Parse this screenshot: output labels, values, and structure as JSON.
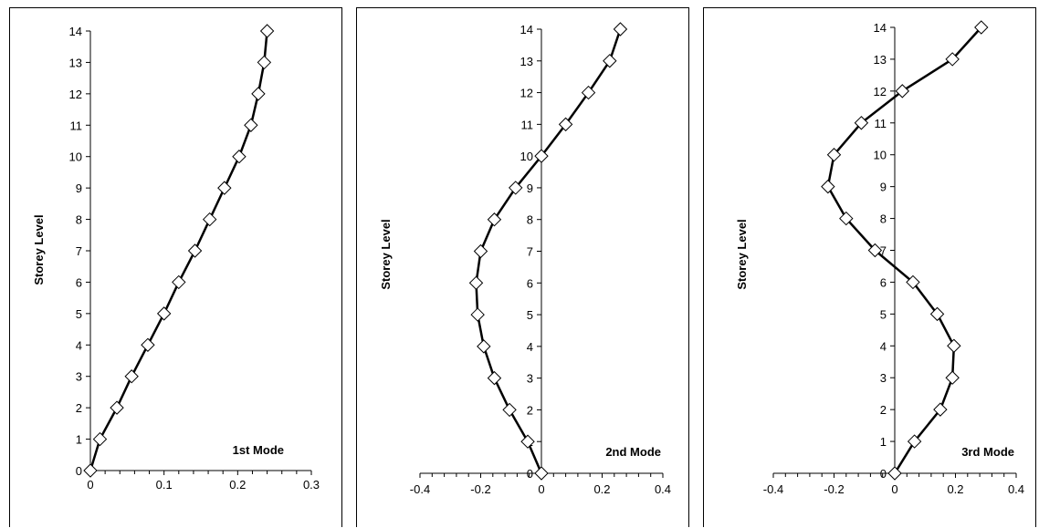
{
  "chart_data": [
    {
      "type": "line",
      "ylabel": "Storey Level",
      "annotation": "1st Mode",
      "xlim": [
        0,
        0.3
      ],
      "ylim": [
        0,
        14
      ],
      "x_ticks": [
        "0",
        "0.1",
        "0.2",
        "0.3"
      ],
      "y_ticks": [
        "0",
        "1",
        "2",
        "3",
        "4",
        "5",
        "6",
        "7",
        "8",
        "9",
        "10",
        "11",
        "12",
        "13",
        "14"
      ],
      "series": [
        {
          "marker": "diamond",
          "x": [
            0,
            0.013,
            0.036,
            0.056,
            0.078,
            0.1,
            0.12,
            0.142,
            0.162,
            0.182,
            0.202,
            0.218,
            0.228,
            0.236,
            0.24
          ],
          "y": [
            0,
            1,
            2,
            3,
            4,
            5,
            6,
            7,
            8,
            9,
            10,
            11,
            12,
            13,
            14
          ]
        }
      ]
    },
    {
      "type": "line",
      "ylabel": "Storey Level",
      "annotation": "2nd Mode",
      "xlim": [
        -0.4,
        0.4
      ],
      "ylim": [
        0,
        14
      ],
      "x_ticks": [
        "-0.4",
        "-0.2",
        "0",
        "0.2",
        "0.4"
      ],
      "y_ticks": [
        "0",
        "1",
        "2",
        "3",
        "4",
        "5",
        "6",
        "7",
        "8",
        "9",
        "10",
        "11",
        "12",
        "13",
        "14"
      ],
      "series": [
        {
          "marker": "diamond",
          "x": [
            0,
            -0.045,
            -0.105,
            -0.155,
            -0.19,
            -0.21,
            -0.215,
            -0.2,
            -0.155,
            -0.085,
            0,
            0.08,
            0.155,
            0.225,
            0.26
          ],
          "y": [
            0,
            1,
            2,
            3,
            4,
            5,
            6,
            7,
            8,
            9,
            10,
            11,
            12,
            13,
            14
          ]
        }
      ]
    },
    {
      "type": "line",
      "ylabel": "Storey Level",
      "annotation": "3rd Mode",
      "xlim": [
        -0.4,
        0.4
      ],
      "ylim": [
        0,
        14
      ],
      "x_ticks": [
        "-0.4",
        "-0.2",
        "0",
        "0.2",
        "0.4"
      ],
      "y_ticks": [
        "0",
        "1",
        "2",
        "3",
        "4",
        "5",
        "6",
        "7",
        "8",
        "9",
        "10",
        "11",
        "12",
        "13",
        "14"
      ],
      "series": [
        {
          "marker": "diamond",
          "x": [
            0,
            0.065,
            0.15,
            0.19,
            0.195,
            0.14,
            0.06,
            -0.065,
            -0.16,
            -0.22,
            -0.2,
            -0.11,
            0.025,
            0.19,
            0.285
          ],
          "y": [
            0,
            1,
            2,
            3,
            4,
            5,
            6,
            7,
            8,
            9,
            10,
            11,
            12,
            13,
            14
          ]
        }
      ]
    }
  ]
}
